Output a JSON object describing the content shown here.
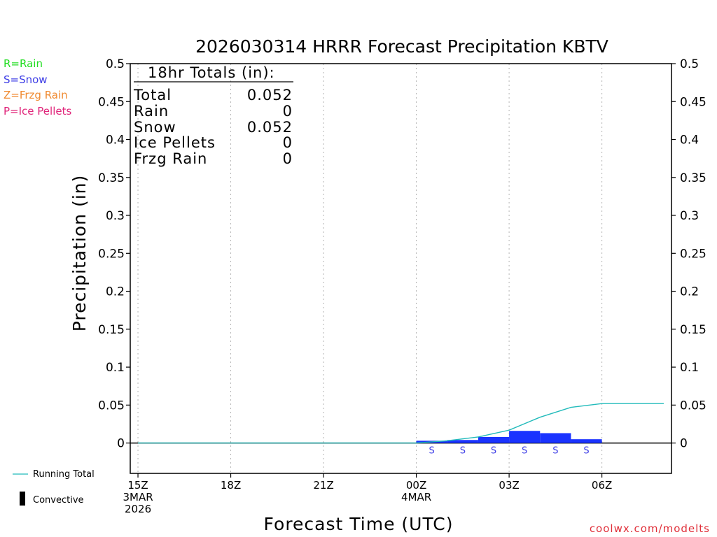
{
  "chart_data": {
    "type": "bar",
    "title": "2026030314 HRRR Forecast Precipitation KBTV",
    "xlabel": "Forecast Time (UTC)",
    "ylabel": "Precipitation (in)",
    "ylim": [
      -0.04,
      0.5
    ],
    "yticks": [
      0,
      0.05,
      0.1,
      0.15,
      0.2,
      0.25,
      0.3,
      0.35,
      0.4,
      0.45,
      0.5
    ],
    "ytick_labels": [
      "0",
      "0.05",
      "0.1",
      "0.15",
      "0.2",
      "0.25",
      "0.3",
      "0.35",
      "0.4",
      "0.45",
      "0.5"
    ],
    "xlim": [
      -0.25,
      17.25
    ],
    "xticks": [
      {
        "hour": 0,
        "lines": [
          "15Z",
          "3MAR",
          "2026"
        ]
      },
      {
        "hour": 3,
        "lines": [
          "18Z"
        ]
      },
      {
        "hour": 6,
        "lines": [
          "21Z"
        ]
      },
      {
        "hour": 9,
        "lines": [
          "00Z",
          "4MAR"
        ]
      },
      {
        "hour": 12,
        "lines": [
          "03Z"
        ]
      },
      {
        "hour": 15,
        "lines": [
          "06Z"
        ]
      }
    ],
    "grid": "vertical dotted",
    "hours": [
      0,
      1,
      2,
      3,
      4,
      5,
      6,
      7,
      8,
      9,
      10,
      11,
      12,
      13,
      14,
      15,
      16,
      17
    ],
    "series": [
      {
        "name": "Snow (hourly)",
        "color": "#1a33ff",
        "values": [
          0,
          0,
          0,
          0,
          0,
          0,
          0,
          0,
          0,
          0,
          0.003,
          0.004,
          0.008,
          0.016,
          0.013,
          0.005,
          0,
          0
        ]
      },
      {
        "name": "Running Total",
        "color": "#22bbbb",
        "values": [
          0,
          0,
          0,
          0,
          0,
          0,
          0,
          0,
          0,
          0,
          0.003,
          0.008,
          0.017,
          0.034,
          0.047,
          0.052,
          0.052,
          0.052
        ]
      }
    ],
    "precip_type_markers": [
      {
        "hour": 10,
        "label": "S"
      },
      {
        "hour": 11,
        "label": "S"
      },
      {
        "hour": 12,
        "label": "S"
      },
      {
        "hour": 13,
        "label": "S"
      },
      {
        "hour": 14,
        "label": "S"
      },
      {
        "hour": 15,
        "label": "S"
      }
    ]
  },
  "type_legend": [
    {
      "label": "R=Rain",
      "color": "#22dd22"
    },
    {
      "label": "S=Snow",
      "color": "#3f3fe6"
    },
    {
      "label": "Z=Frzg Rain",
      "color": "#f08a30"
    },
    {
      "label": "P=Ice Pellets",
      "color": "#e0257a"
    }
  ],
  "totals": {
    "header": "18hr Totals (in):",
    "rows": [
      {
        "label": "Total",
        "value": "0.052"
      },
      {
        "label": "Rain",
        "value": "0"
      },
      {
        "label": "Snow",
        "value": "0.052"
      },
      {
        "label": "Ice Pellets",
        "value": "0"
      },
      {
        "label": "Frzg Rain",
        "value": "0"
      }
    ]
  },
  "bottom_legend": {
    "running_total": "Running Total",
    "convective": "Convective",
    "running_total_color": "#22bbbb"
  },
  "credit": "coolwx.com/modelts"
}
